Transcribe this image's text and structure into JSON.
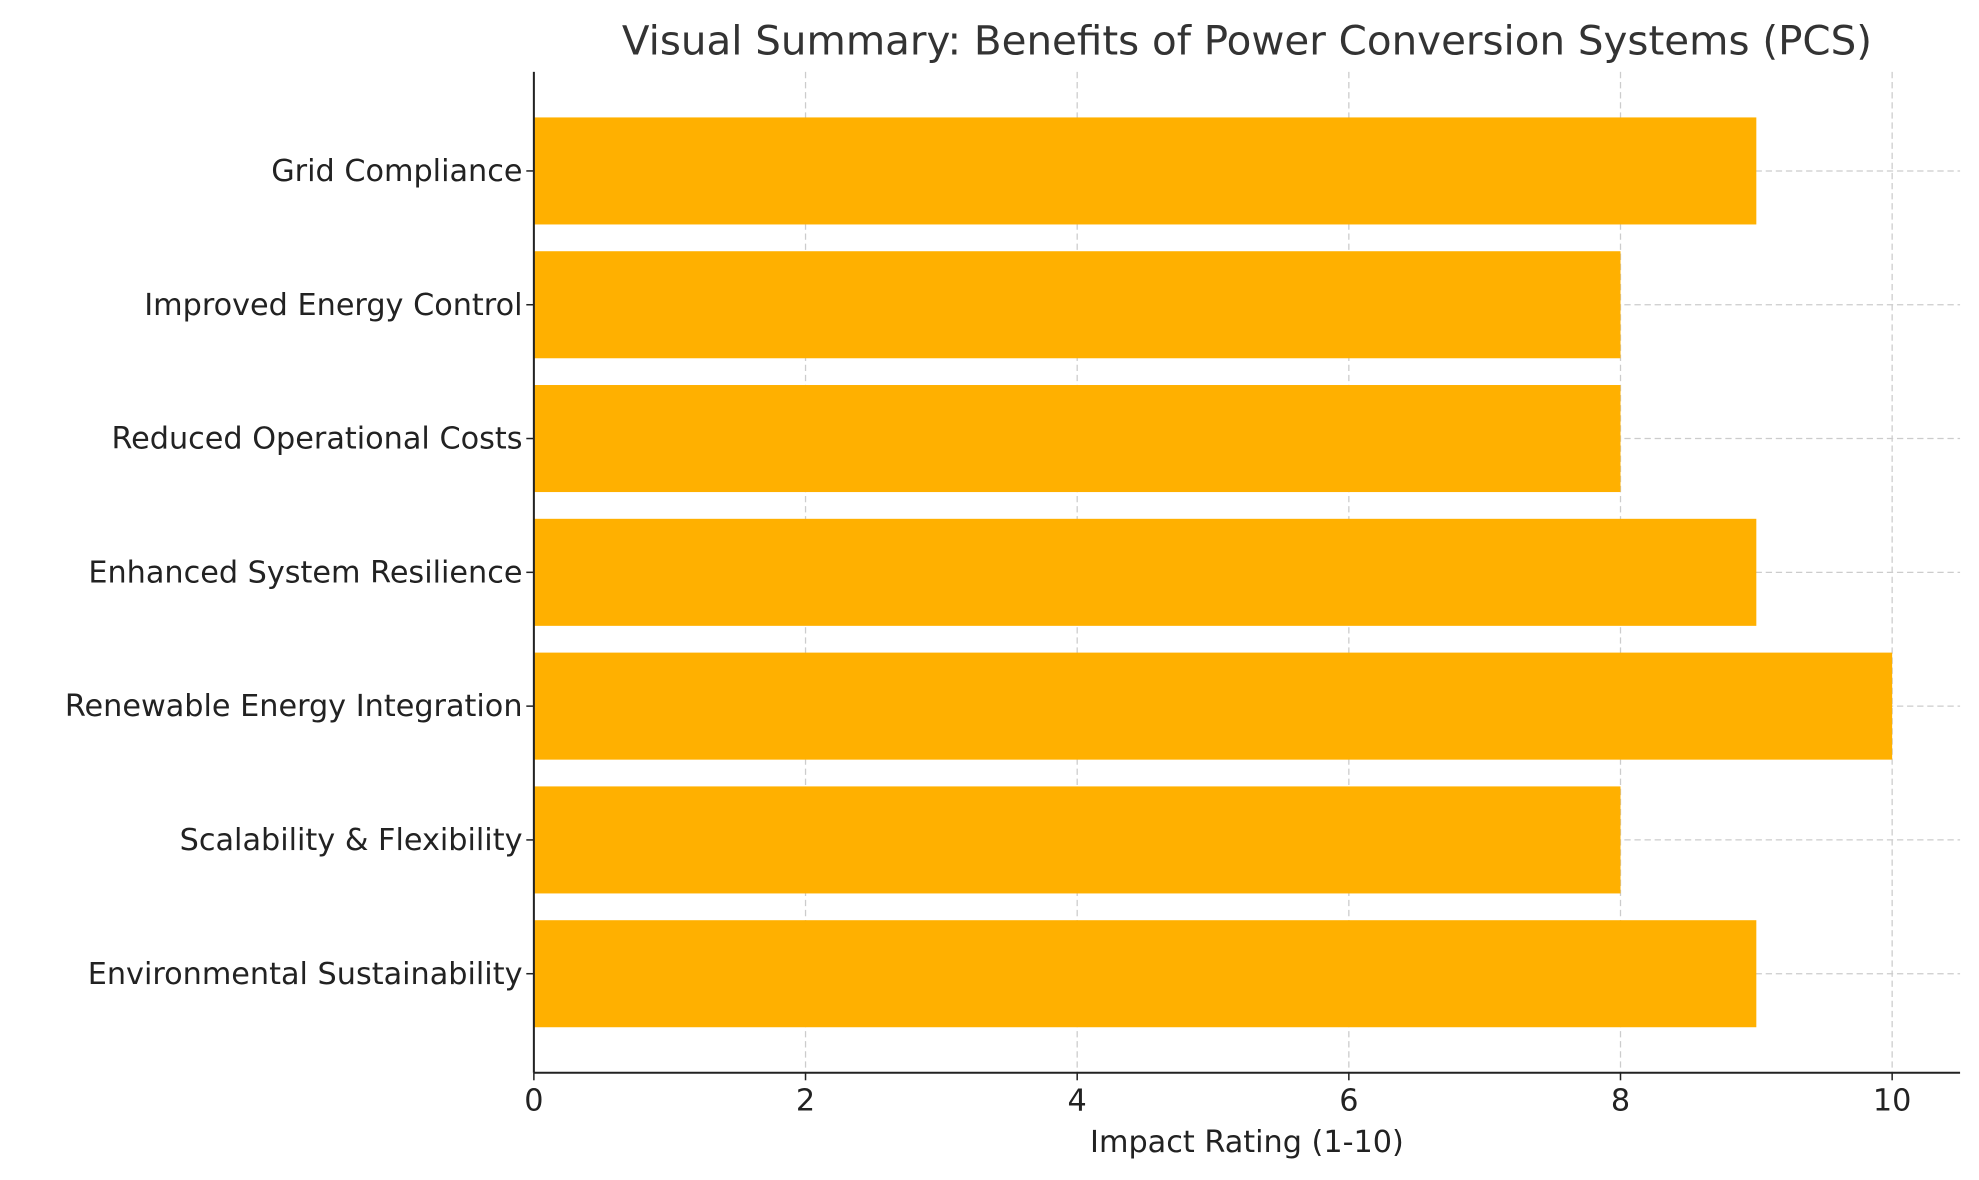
{
  "chart_data": {
    "type": "bar",
    "orientation": "horizontal",
    "title": "Visual Summary: Benefits of Power Conversion Systems (PCS)",
    "xlabel": "Impact Rating (1-10)",
    "ylabel": "",
    "categories": [
      "Environmental Sustainability",
      "Scalability & Flexibility",
      "Renewable Energy Integration",
      "Enhanced System Resilience",
      "Reduced Operational Costs",
      "Improved Energy Control",
      "Grid Compliance"
    ],
    "values": [
      9,
      8,
      10,
      9,
      8,
      8,
      9
    ],
    "xlim": [
      0,
      10.5
    ],
    "xticks": [
      "0",
      "2",
      "4",
      "6",
      "8",
      "10"
    ],
    "grid": true,
    "bar_color": "#FFB000"
  }
}
